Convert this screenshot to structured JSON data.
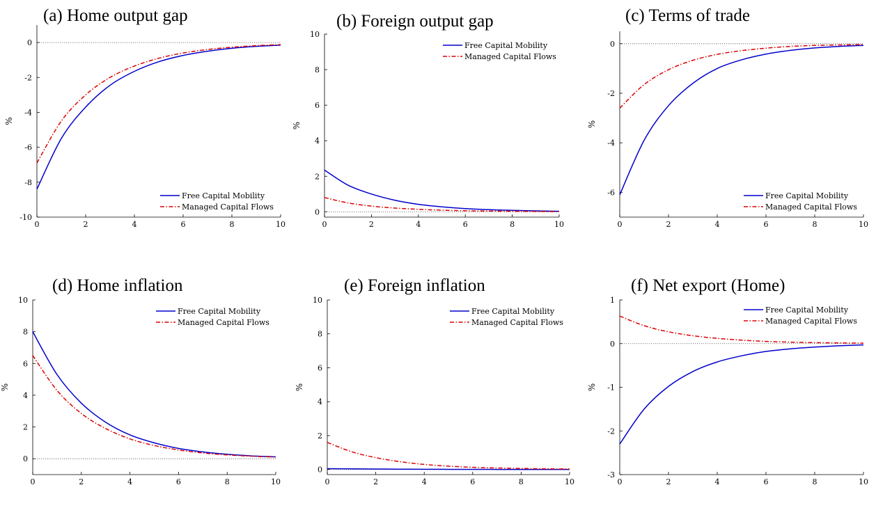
{
  "colors": {
    "free": "#0000cc",
    "managed": "#dd0000",
    "axis": "#000000",
    "zero": "#555555"
  },
  "legend": {
    "free_label": "Free Capital Mobility",
    "managed_label": "Managed Capital Flows"
  },
  "chart_data": [
    {
      "type": "line",
      "title": "(a) Home output gap",
      "ylabel": "%",
      "xlim": [
        0,
        10
      ],
      "ylim": [
        -10,
        1
      ],
      "xticks": [
        0,
        2,
        4,
        6,
        8,
        10
      ],
      "yticks": [
        -10,
        -8,
        -6,
        -4,
        -2,
        0
      ],
      "zero_line": true,
      "legend_position": "bottom-right",
      "x": [
        0,
        1,
        2,
        3,
        4,
        5,
        6,
        7,
        8,
        9,
        10
      ],
      "series": [
        {
          "name": "Free Capital Mobility",
          "key": "free",
          "values": [
            -8.4,
            -5.5,
            -3.7,
            -2.45,
            -1.65,
            -1.1,
            -0.74,
            -0.5,
            -0.33,
            -0.22,
            -0.15
          ]
        },
        {
          "name": "Managed Capital Flows",
          "key": "managed",
          "values": [
            -6.9,
            -4.5,
            -3.0,
            -2.0,
            -1.35,
            -0.9,
            -0.6,
            -0.4,
            -0.27,
            -0.18,
            -0.12
          ]
        }
      ]
    },
    {
      "type": "line",
      "title": "(b) Foreign output gap",
      "ylabel": "%",
      "xlim": [
        0,
        10
      ],
      "ylim": [
        -0.3,
        10
      ],
      "xticks": [
        0,
        2,
        4,
        6,
        8,
        10
      ],
      "yticks": [
        0,
        2,
        4,
        6,
        8,
        10
      ],
      "zero_line": true,
      "legend_position": "top-right",
      "x": [
        0,
        1,
        2,
        3,
        4,
        5,
        6,
        7,
        8,
        9,
        10
      ],
      "series": [
        {
          "name": "Free Capital Mobility",
          "key": "free",
          "values": [
            2.35,
            1.5,
            1.0,
            0.65,
            0.42,
            0.28,
            0.18,
            0.12,
            0.08,
            0.05,
            0.03
          ]
        },
        {
          "name": "Managed Capital Flows",
          "key": "managed",
          "values": [
            0.8,
            0.5,
            0.32,
            0.21,
            0.14,
            0.09,
            0.06,
            0.04,
            0.03,
            0.02,
            0.01
          ]
        }
      ]
    },
    {
      "type": "line",
      "title": "(c) Terms of trade",
      "ylabel": "%",
      "xlim": [
        0,
        10
      ],
      "ylim": [
        -7,
        0.5
      ],
      "xticks": [
        0,
        2,
        4,
        6,
        8,
        10
      ],
      "yticks": [
        -6,
        -4,
        -2,
        0
      ],
      "zero_line": true,
      "legend_position": "bottom-right",
      "x": [
        0,
        1,
        2,
        3,
        4,
        5,
        6,
        7,
        8,
        9,
        10
      ],
      "series": [
        {
          "name": "Free Capital Mobility",
          "key": "free",
          "values": [
            -6.1,
            -3.9,
            -2.5,
            -1.6,
            -1.0,
            -0.65,
            -0.42,
            -0.27,
            -0.17,
            -0.11,
            -0.07
          ]
        },
        {
          "name": "Managed Capital Flows",
          "key": "managed",
          "values": [
            -2.6,
            -1.65,
            -1.05,
            -0.67,
            -0.43,
            -0.28,
            -0.18,
            -0.11,
            -0.07,
            -0.05,
            -0.03
          ]
        }
      ]
    },
    {
      "type": "line",
      "title": "(d) Home inflation",
      "ylabel": "%",
      "xlim": [
        0,
        10
      ],
      "ylim": [
        -1,
        10
      ],
      "xticks": [
        0,
        2,
        4,
        6,
        8,
        10
      ],
      "yticks": [
        0,
        2,
        4,
        6,
        8,
        10
      ],
      "zero_line": true,
      "legend_position": "top-right",
      "x": [
        0,
        1,
        2,
        3,
        4,
        5,
        6,
        7,
        8,
        9,
        10
      ],
      "series": [
        {
          "name": "Free Capital Mobility",
          "key": "free",
          "values": [
            8.0,
            5.3,
            3.5,
            2.3,
            1.5,
            1.0,
            0.65,
            0.43,
            0.28,
            0.18,
            0.12
          ]
        },
        {
          "name": "Managed Capital Flows",
          "key": "managed",
          "values": [
            6.5,
            4.3,
            2.85,
            1.9,
            1.25,
            0.83,
            0.55,
            0.36,
            0.24,
            0.16,
            0.1
          ]
        }
      ]
    },
    {
      "type": "line",
      "title": "(e) Foreign inflation",
      "ylabel": "%",
      "xlim": [
        0,
        10
      ],
      "ylim": [
        -0.3,
        10
      ],
      "xticks": [
        0,
        2,
        4,
        6,
        8,
        10
      ],
      "yticks": [
        0,
        2,
        4,
        6,
        8,
        10
      ],
      "zero_line": true,
      "legend_position": "top-right",
      "x": [
        0,
        1,
        2,
        3,
        4,
        5,
        6,
        7,
        8,
        9,
        10
      ],
      "series": [
        {
          "name": "Free Capital Mobility",
          "key": "free",
          "values": [
            0.05,
            0.04,
            0.03,
            0.02,
            0.015,
            0.01,
            0.007,
            0.005,
            0.003,
            0.002,
            0.001
          ]
        },
        {
          "name": "Managed Capital Flows",
          "key": "managed",
          "values": [
            1.6,
            1.05,
            0.7,
            0.46,
            0.3,
            0.2,
            0.13,
            0.09,
            0.06,
            0.04,
            0.03
          ]
        }
      ]
    },
    {
      "type": "line",
      "title": "(f) Net export (Home)",
      "ylabel": "%",
      "xlim": [
        0,
        10
      ],
      "ylim": [
        -3,
        1
      ],
      "xticks": [
        0,
        2,
        4,
        6,
        8,
        10
      ],
      "yticks": [
        -3,
        -2,
        -1,
        0,
        1
      ],
      "zero_line": true,
      "legend_position": "top-right",
      "x": [
        0,
        1,
        2,
        3,
        4,
        5,
        6,
        7,
        8,
        9,
        10
      ],
      "series": [
        {
          "name": "Free Capital Mobility",
          "key": "free",
          "values": [
            -2.3,
            -1.5,
            -0.98,
            -0.64,
            -0.42,
            -0.28,
            -0.18,
            -0.12,
            -0.08,
            -0.05,
            -0.03
          ]
        },
        {
          "name": "Managed Capital Flows",
          "key": "managed",
          "values": [
            0.63,
            0.41,
            0.27,
            0.18,
            0.12,
            0.08,
            0.05,
            0.033,
            0.022,
            0.015,
            0.01
          ]
        }
      ]
    }
  ]
}
